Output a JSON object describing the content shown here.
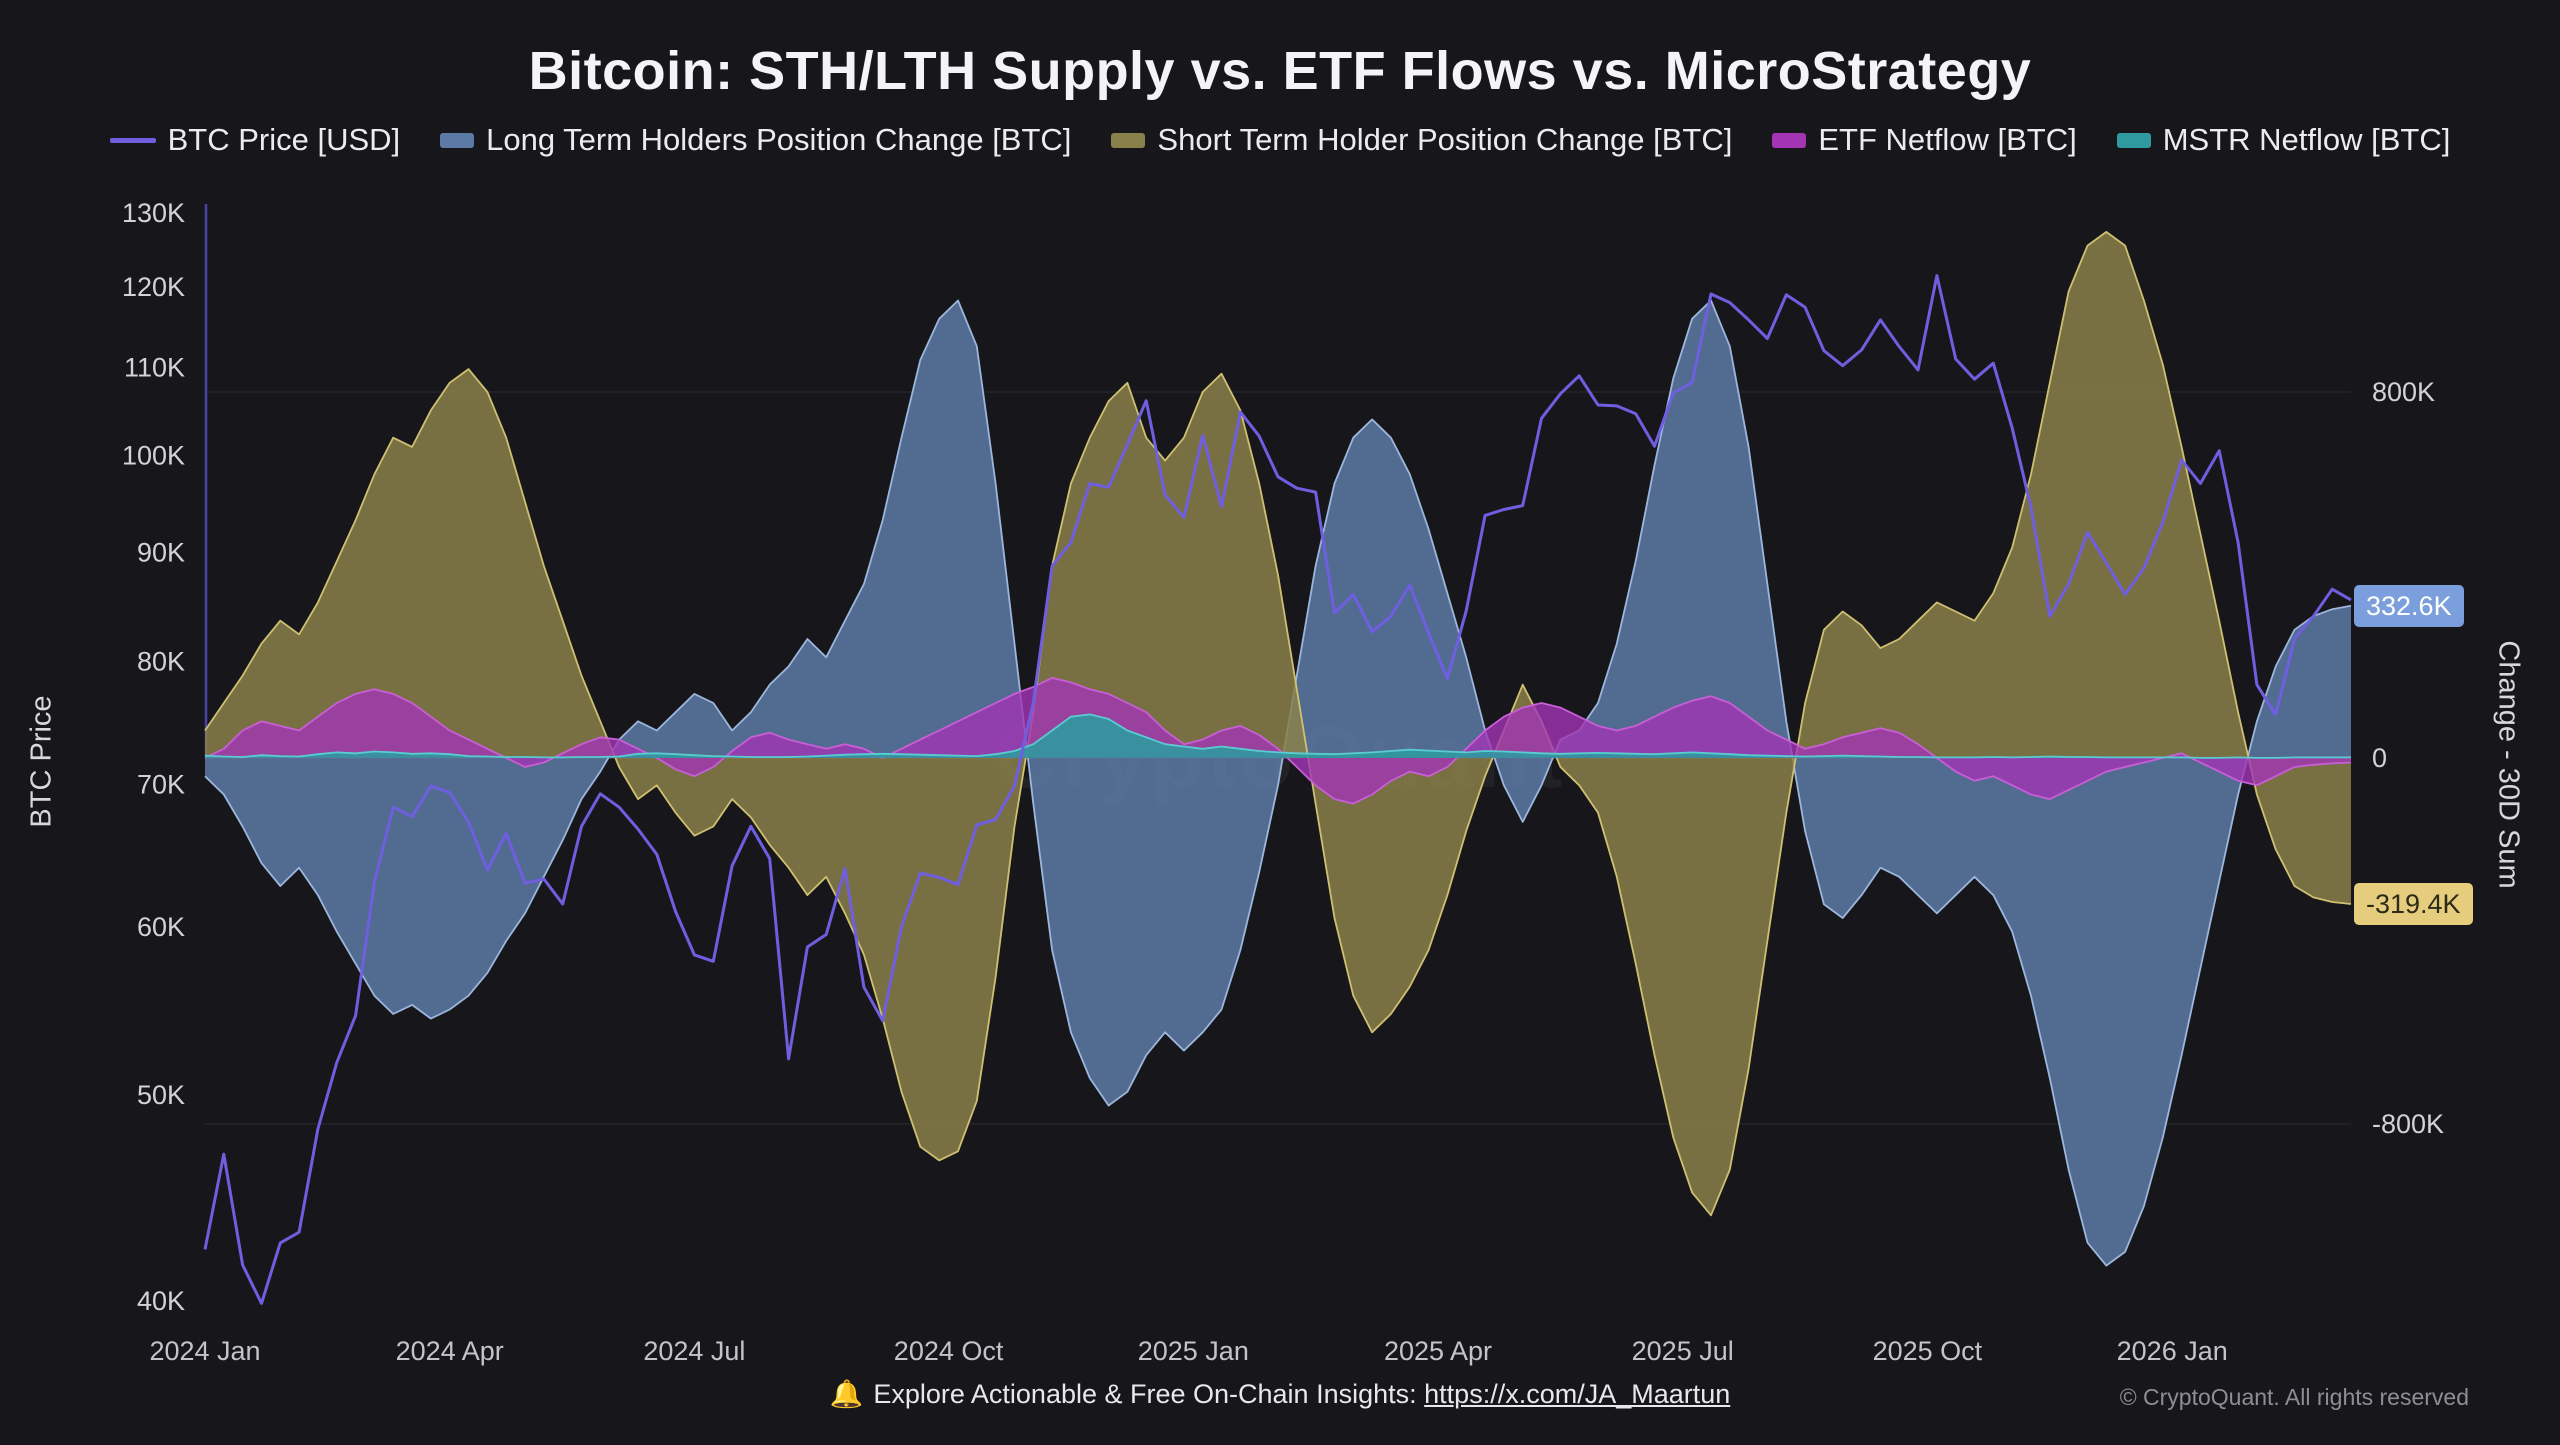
{
  "page": {
    "title": "Bitcoin: STH/LTH Supply vs. ETF Flows vs. MicroStrategy",
    "watermark": "CryptoQuant",
    "footer": {
      "bell_icon": "🔔",
      "text": "Explore Actionable & Free On-Chain Insights:",
      "link": "https://x.com/JA_Maartun",
      "copyright": "© CryptoQuant. All rights reserved"
    }
  },
  "chart_data": {
    "type": "line+area",
    "title": "Bitcoin: STH/LTH Supply vs. ETF Flows vs. MicroStrategy",
    "x_unit": "weeks since 2024 Jan",
    "x_ticks": [
      {
        "label": "2024 Jan",
        "week": 0
      },
      {
        "label": "2024 Apr",
        "week": 13
      },
      {
        "label": "2024 Jul",
        "week": 26
      },
      {
        "label": "2024 Oct",
        "week": 39.5
      },
      {
        "label": "2025 Jan",
        "week": 52.5
      },
      {
        "label": "2025 Apr",
        "week": 65.5
      },
      {
        "label": "2025 Jul",
        "week": 78.5
      },
      {
        "label": "2025 Oct",
        "week": 91.5
      },
      {
        "label": "2026 Jan",
        "week": 104.5
      }
    ],
    "left_axis": {
      "title": "BTC Price",
      "unit": "thousand USD",
      "scale": "log",
      "range": [
        39.4,
        131.3
      ],
      "ticks": [
        {
          "label": "130K",
          "value": 130
        },
        {
          "label": "120K",
          "value": 120
        },
        {
          "label": "110K",
          "value": 110
        },
        {
          "label": "100K",
          "value": 100
        },
        {
          "label": "90K",
          "value": 90
        },
        {
          "label": "80K",
          "value": 80
        },
        {
          "label": "70K",
          "value": 70
        },
        {
          "label": "60K",
          "value": 60
        },
        {
          "label": "50K",
          "value": 50
        },
        {
          "label": "40K",
          "value": 40
        }
      ]
    },
    "right_axis": {
      "title": "Change - 30D Sum",
      "unit": "thousand BTC",
      "scale": "linear",
      "range": [
        -1218,
        1211
      ],
      "ticks": [
        {
          "label": "800K",
          "value": 800
        },
        {
          "label": "0",
          "value": 0
        },
        {
          "label": "-800K",
          "value": -800
        }
      ]
    },
    "series": [
      {
        "id": "btc-price",
        "name": "BTC Price [USD]",
        "type": "line",
        "axis": "left",
        "color": "#6f5fe0",
        "stroke": "#6f5fe0",
        "opacity": 1,
        "values": [
          42.3,
          46.9,
          41.6,
          39.9,
          42.6,
          43.1,
          48.2,
          51.8,
          54.5,
          63.0,
          68.3,
          67.6,
          69.9,
          69.4,
          67.2,
          63.8,
          66.4,
          62.9,
          63.2,
          61.5,
          66.9,
          69.3,
          68.3,
          66.7,
          64.9,
          61.0,
          58.2,
          57.8,
          64.1,
          66.9,
          64.6,
          52.0,
          58.7,
          59.5,
          63.9,
          56.2,
          54.2,
          60.0,
          63.6,
          63.3,
          62.8,
          67.0,
          67.4,
          69.9,
          76.5,
          88.7,
          91.0,
          97.0,
          96.6,
          101.2,
          106.1,
          95.8,
          93.5,
          102.2,
          94.6,
          104.8,
          102.1,
          97.7,
          96.5,
          96.1,
          84.3,
          86.0,
          82.6,
          84.0,
          86.9,
          82.5,
          78.5,
          84.5,
          93.7,
          94.3,
          94.7,
          104.1,
          106.9,
          109.0,
          105.6,
          105.5,
          104.6,
          101.0,
          107.0,
          108.2,
          119.1,
          118.0,
          115.8,
          113.5,
          119.0,
          117.4,
          112.0,
          110.2,
          112.1,
          115.8,
          112.5,
          109.7,
          121.5,
          111.0,
          108.6,
          110.5,
          103.0,
          94.5,
          84.0,
          87.0,
          92.0,
          89.0,
          86.0,
          88.5,
          93.0,
          99.5,
          97.0,
          100.5,
          91.0,
          78.0,
          75.5,
          82.0,
          84.0,
          86.5,
          85.5
        ]
      },
      {
        "id": "lth-change",
        "name": "Long Term Holders Position Change [BTC]",
        "type": "area",
        "axis": "right",
        "color": "#5d7aa6",
        "stroke": "#9cb6dc",
        "opacity": 0.85,
        "values": [
          -40,
          -80,
          -150,
          -230,
          -280,
          -240,
          -300,
          -380,
          -450,
          -520,
          -560,
          -540,
          -570,
          -550,
          -520,
          -470,
          -400,
          -340,
          -260,
          -180,
          -90,
          -30,
          40,
          80,
          60,
          100,
          140,
          120,
          60,
          100,
          160,
          200,
          260,
          220,
          300,
          380,
          520,
          700,
          870,
          960,
          1000,
          900,
          600,
          250,
          -100,
          -420,
          -600,
          -700,
          -760,
          -730,
          -650,
          -600,
          -640,
          -600,
          -550,
          -420,
          -250,
          -60,
          180,
          420,
          600,
          700,
          740,
          700,
          620,
          500,
          360,
          220,
          60,
          -60,
          -140,
          -60,
          40,
          60,
          120,
          250,
          430,
          640,
          830,
          960,
          1000,
          900,
          680,
          380,
          80,
          -160,
          -320,
          -350,
          -300,
          -240,
          -260,
          -300,
          -340,
          -300,
          -260,
          -300,
          -380,
          -520,
          -700,
          -900,
          -1060,
          -1110,
          -1080,
          -980,
          -830,
          -650,
          -460,
          -270,
          -80,
          80,
          200,
          280,
          310,
          325,
          332.6
        ]
      },
      {
        "id": "sth-change",
        "name": "Short Term Holder Position Change [BTC]",
        "type": "area",
        "axis": "right",
        "color": "#89804a",
        "stroke": "#cfc071",
        "opacity": 0.85,
        "values": [
          60,
          120,
          180,
          250,
          300,
          270,
          340,
          430,
          520,
          620,
          700,
          680,
          760,
          820,
          850,
          800,
          700,
          560,
          420,
          300,
          180,
          80,
          -20,
          -90,
          -60,
          -120,
          -170,
          -150,
          -90,
          -130,
          -190,
          -240,
          -300,
          -260,
          -340,
          -430,
          -570,
          -730,
          -850,
          -880,
          -860,
          -750,
          -480,
          -150,
          100,
          420,
          600,
          700,
          780,
          820,
          700,
          650,
          700,
          800,
          840,
          760,
          600,
          400,
          150,
          -100,
          -350,
          -520,
          -600,
          -560,
          -500,
          -420,
          -300,
          -160,
          -40,
          60,
          160,
          80,
          -20,
          -60,
          -120,
          -260,
          -450,
          -650,
          -830,
          -950,
          -1000,
          -900,
          -680,
          -400,
          -120,
          120,
          280,
          320,
          290,
          240,
          260,
          300,
          340,
          320,
          300,
          360,
          460,
          620,
          820,
          1020,
          1120,
          1150,
          1120,
          1000,
          860,
          680,
          490,
          300,
          100,
          -80,
          -200,
          -280,
          -305,
          -315,
          -319.4
        ]
      },
      {
        "id": "etf-netflow",
        "name": "ETF Netflow [BTC]",
        "type": "area",
        "axis": "right",
        "color": "#a335b5",
        "stroke": "#c95fd6",
        "opacity": 0.8,
        "values": [
          0,
          20,
          60,
          80,
          70,
          60,
          90,
          120,
          140,
          150,
          140,
          120,
          90,
          60,
          40,
          20,
          0,
          -20,
          -10,
          10,
          30,
          45,
          40,
          20,
          0,
          -25,
          -40,
          -20,
          15,
          45,
          55,
          40,
          30,
          20,
          30,
          20,
          0,
          20,
          40,
          60,
          80,
          100,
          120,
          140,
          155,
          175,
          165,
          150,
          140,
          120,
          100,
          60,
          30,
          40,
          60,
          70,
          50,
          20,
          -20,
          -60,
          -90,
          -100,
          -80,
          -50,
          -30,
          -40,
          -20,
          20,
          60,
          90,
          110,
          120,
          110,
          90,
          70,
          60,
          70,
          90,
          110,
          125,
          135,
          120,
          90,
          60,
          40,
          20,
          30,
          45,
          55,
          65,
          55,
          30,
          0,
          -30,
          -50,
          -40,
          -60,
          -80,
          -90,
          -70,
          -50,
          -30,
          -20,
          -10,
          0,
          10,
          -10,
          -30,
          -50,
          -60,
          -40,
          -20,
          -15,
          -12,
          -10
        ]
      },
      {
        "id": "mstr-netflow",
        "name": "MSTR Netflow [BTC]",
        "type": "area",
        "axis": "right",
        "color": "#2f9aa0",
        "stroke": "#59ccd2",
        "opacity": 0.9,
        "values": [
          5,
          3,
          2,
          6,
          4,
          3,
          8,
          12,
          10,
          14,
          12,
          9,
          10,
          8,
          4,
          3,
          2,
          2,
          1,
          1,
          2,
          2,
          3,
          9,
          10,
          8,
          6,
          4,
          3,
          2,
          2,
          2,
          3,
          5,
          7,
          8,
          9,
          8,
          7,
          6,
          5,
          4,
          8,
          15,
          30,
          60,
          90,
          95,
          85,
          60,
          45,
          30,
          25,
          20,
          25,
          20,
          15,
          12,
          10,
          9,
          8,
          10,
          12,
          15,
          18,
          16,
          14,
          12,
          15,
          14,
          12,
          10,
          9,
          10,
          11,
          10,
          9,
          8,
          10,
          12,
          10,
          8,
          6,
          5,
          4,
          3,
          4,
          5,
          4,
          3,
          2,
          2,
          1,
          1,
          1,
          2,
          1,
          2,
          3,
          2,
          2,
          1,
          1,
          1,
          1,
          1,
          0,
          0,
          1,
          0,
          0,
          1,
          1,
          1,
          1
        ]
      }
    ],
    "badges": [
      {
        "label": "332.6K",
        "value": 332.6,
        "axis": "right",
        "bg": "#7b9fdd",
        "fg": "#ffffff"
      },
      {
        "label": "-319.4K",
        "value": -319.4,
        "axis": "right",
        "bg": "#e5cd7d",
        "fg": "#2e2a1a"
      }
    ]
  }
}
